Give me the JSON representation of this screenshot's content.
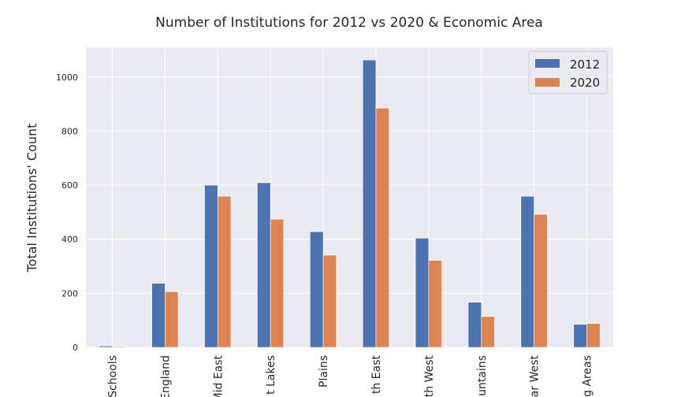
{
  "chart_data": {
    "type": "bar",
    "title": "Number of Institutions for 2012 vs 2020 & Economic Area",
    "ylabel": "Total Institutions' Count",
    "xlabel": "",
    "ylim": [
      0,
      1110
    ],
    "yticks": [
      0,
      200,
      400,
      600,
      800,
      1000
    ],
    "grid": true,
    "legend_position": "top-right",
    "categories": [
      "Schools",
      "England",
      "Mid East",
      "t Lakes",
      "Plains",
      "th East",
      "th West",
      "untains",
      "ar West",
      "g Areas"
    ],
    "series": [
      {
        "name": "2012",
        "color": "#4c72b0",
        "values": [
          5,
          237,
          600,
          609,
          428,
          1063,
          404,
          167,
          559,
          85
        ]
      },
      {
        "name": "2020",
        "color": "#dd8452",
        "values": [
          3,
          206,
          559,
          474,
          341,
          885,
          322,
          114,
          492,
          88
        ]
      }
    ]
  },
  "colors": {
    "plot_background": "#eaeaf2",
    "grid": "#ffffff"
  }
}
